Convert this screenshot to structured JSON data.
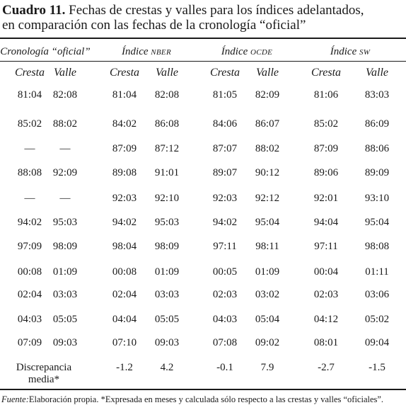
{
  "caption": {
    "label": "Cuadro 11.",
    "line1": "Fechas de crestas y valles para los índices adelantados,",
    "line2": "en comparación con las fechas de la cronología “oficial”"
  },
  "groups": [
    {
      "title": "Cronología “oficial”",
      "small": ""
    },
    {
      "title": "Índice",
      "small": "NBER"
    },
    {
      "title": "Índice",
      "small": "OCDE"
    },
    {
      "title": "Índice",
      "small": "SW"
    }
  ],
  "subheaders": [
    "Cresta",
    "Valle",
    "Cresta",
    "Valle",
    "Cresta",
    "Valle",
    "Cresta",
    "Valle"
  ],
  "rows": [
    [
      "81:04",
      "82:08",
      "81:04",
      "82:08",
      "81:05",
      "82:09",
      "81:06",
      "83:03"
    ],
    [
      "85:02",
      "88:02",
      "84:02",
      "86:08",
      "84:06",
      "86:07",
      "85:02",
      "86:09"
    ],
    [
      "—",
      "—",
      "87:09",
      "87:12",
      "87:07",
      "88:02",
      "87:09",
      "88:06"
    ],
    [
      "88:08",
      "92:09",
      "89:08",
      "91:01",
      "89:07",
      "90:12",
      "89:06",
      "89:09"
    ],
    [
      "—",
      "—",
      "92:03",
      "92:10",
      "92:03",
      "92:12",
      "92:01",
      "93:10"
    ],
    [
      "94:02",
      "95:03",
      "94:02",
      "95:03",
      "94:02",
      "95:04",
      "94:04",
      "95:04"
    ],
    [
      "97:09",
      "98:09",
      "98:04",
      "98:09",
      "97:11",
      "98:11",
      "97:11",
      "98:08"
    ],
    [
      "00:08",
      "01:09",
      "00:08",
      "01:09",
      "00:05",
      "01:09",
      "00:04",
      "01:11"
    ],
    [
      "02:04",
      "03:03",
      "02:04",
      "03:03",
      "02:03",
      "03:02",
      "02:03",
      "03:06"
    ],
    [
      "04:03",
      "05:05",
      "04:04",
      "05:05",
      "04:03",
      "05:04",
      "04:12",
      "05:02"
    ],
    [
      "07:09",
      "09:03",
      "07:10",
      "09:03",
      "07:08",
      "09:02",
      "08:01",
      "09:04"
    ]
  ],
  "discrepancy": {
    "label_line1": "Discrepancia",
    "label_line2": "media*",
    "values": [
      "-1.2",
      "4.2",
      "-0.1",
      "7.9",
      "-2.7",
      "-1.5"
    ]
  },
  "source": {
    "label": "Fuente:",
    "text": "Elaboración propia. *Expresada en meses y calculada sólo respecto a las crestas y valles “oficiales”."
  }
}
